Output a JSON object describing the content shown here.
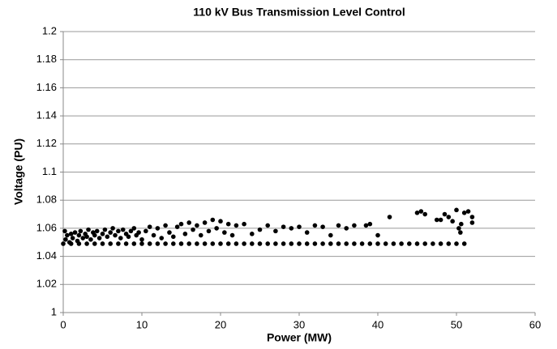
{
  "chart_data": {
    "type": "scatter",
    "title": "110 kV Bus Transmission Level Control",
    "x_label": "Power (MW)",
    "y_label": "Voltage (PU)",
    "xlim": [
      0,
      60
    ],
    "xticks": [
      0,
      10,
      20,
      30,
      40,
      50,
      60
    ],
    "ylim": [
      1,
      1.2
    ],
    "yticks": [
      1,
      1.02,
      1.04,
      1.06,
      1.08,
      1.1,
      1.12,
      1.14,
      1.16,
      1.18,
      1.2
    ],
    "grid": true,
    "color": "#000000",
    "x": [
      0,
      1,
      2,
      3,
      4,
      5,
      6,
      7,
      8,
      9,
      10,
      11,
      12,
      13,
      14,
      15,
      16,
      17,
      18,
      19,
      20,
      21,
      22,
      23,
      24,
      25,
      26,
      27,
      28,
      29,
      30,
      31,
      32,
      33,
      34,
      35,
      36,
      37,
      38,
      39,
      40,
      41,
      42,
      43,
      44,
      45,
      46,
      47,
      48,
      49,
      50,
      51,
      0.2,
      0.3,
      0.5,
      0.8,
      1,
      1.2,
      1.5,
      1.8,
      2,
      2.2,
      2.5,
      2.8,
      3,
      3.2,
      3.5,
      3.8,
      4,
      4.3,
      4.6,
      5,
      5.3,
      5.6,
      6,
      6.3,
      6.6,
      7,
      7.3,
      7.6,
      8,
      8.3,
      8.6,
      9,
      9.3,
      9.6,
      10,
      10.5,
      11,
      11.5,
      12,
      12.5,
      13,
      13.5,
      14,
      14.5,
      15,
      15.5,
      16,
      16.5,
      17,
      17.5,
      18,
      18.5,
      19,
      19.5,
      20,
      20.5,
      21,
      21.5,
      22,
      23,
      24,
      25,
      26,
      27,
      28,
      29,
      30,
      31,
      32,
      33,
      34,
      35,
      36,
      37,
      38.5,
      39,
      40,
      41.5,
      45,
      45.5,
      46,
      47.5,
      48,
      48.5,
      49,
      49.5,
      50,
      50.3,
      50.5,
      50.6,
      51,
      51.5,
      52,
      52
    ],
    "values": [
      1.049,
      1.049,
      1.049,
      1.049,
      1.049,
      1.049,
      1.049,
      1.049,
      1.049,
      1.049,
      1.049,
      1.049,
      1.049,
      1.049,
      1.049,
      1.049,
      1.049,
      1.049,
      1.049,
      1.049,
      1.049,
      1.049,
      1.049,
      1.049,
      1.049,
      1.049,
      1.049,
      1.049,
      1.049,
      1.049,
      1.049,
      1.049,
      1.049,
      1.049,
      1.049,
      1.049,
      1.049,
      1.049,
      1.049,
      1.049,
      1.049,
      1.049,
      1.049,
      1.049,
      1.049,
      1.049,
      1.049,
      1.049,
      1.049,
      1.049,
      1.049,
      1.049,
      1.058,
      1.052,
      1.055,
      1.05,
      1.056,
      1.053,
      1.057,
      1.051,
      1.055,
      1.058,
      1.053,
      1.056,
      1.054,
      1.059,
      1.052,
      1.057,
      1.055,
      1.058,
      1.053,
      1.056,
      1.059,
      1.054,
      1.057,
      1.06,
      1.055,
      1.058,
      1.053,
      1.059,
      1.056,
      1.054,
      1.058,
      1.06,
      1.055,
      1.057,
      1.052,
      1.058,
      1.061,
      1.055,
      1.06,
      1.053,
      1.062,
      1.057,
      1.054,
      1.061,
      1.063,
      1.056,
      1.064,
      1.059,
      1.062,
      1.055,
      1.064,
      1.058,
      1.066,
      1.06,
      1.065,
      1.057,
      1.063,
      1.055,
      1.062,
      1.063,
      1.056,
      1.059,
      1.062,
      1.058,
      1.061,
      1.06,
      1.061,
      1.057,
      1.062,
      1.061,
      1.055,
      1.062,
      1.06,
      1.062,
      1.062,
      1.063,
      1.055,
      1.068,
      1.071,
      1.072,
      1.07,
      1.066,
      1.066,
      1.07,
      1.068,
      1.065,
      1.073,
      1.06,
      1.057,
      1.063,
      1.071,
      1.072,
      1.068,
      1.064
    ]
  }
}
